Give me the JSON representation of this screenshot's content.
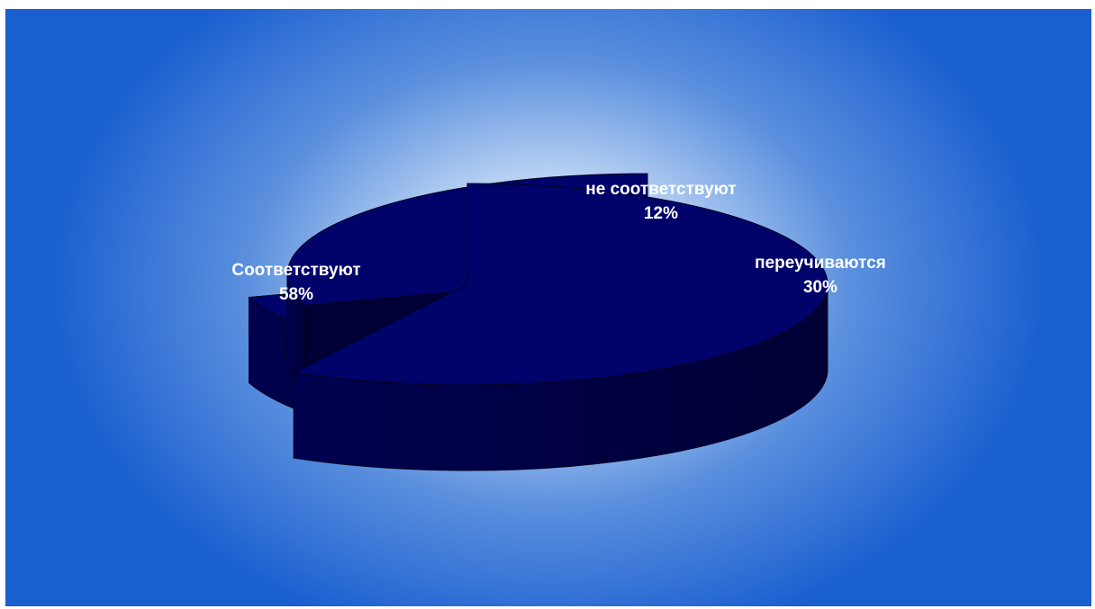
{
  "chart_data": {
    "type": "pie",
    "style": "3d-exploded",
    "slices": [
      {
        "label": "Соответствуют",
        "value": 58,
        "value_label": "58%"
      },
      {
        "label": "не соответствуют",
        "value": 12,
        "value_label": "12%"
      },
      {
        "label": "переучиваются",
        "value": 30,
        "value_label": "30%"
      }
    ],
    "colors": {
      "top": "#02026b",
      "side": "#000050",
      "side_dark": "#000035",
      "outline": "#000020",
      "label": "#ffffff",
      "background": "#1a5fd0"
    }
  }
}
